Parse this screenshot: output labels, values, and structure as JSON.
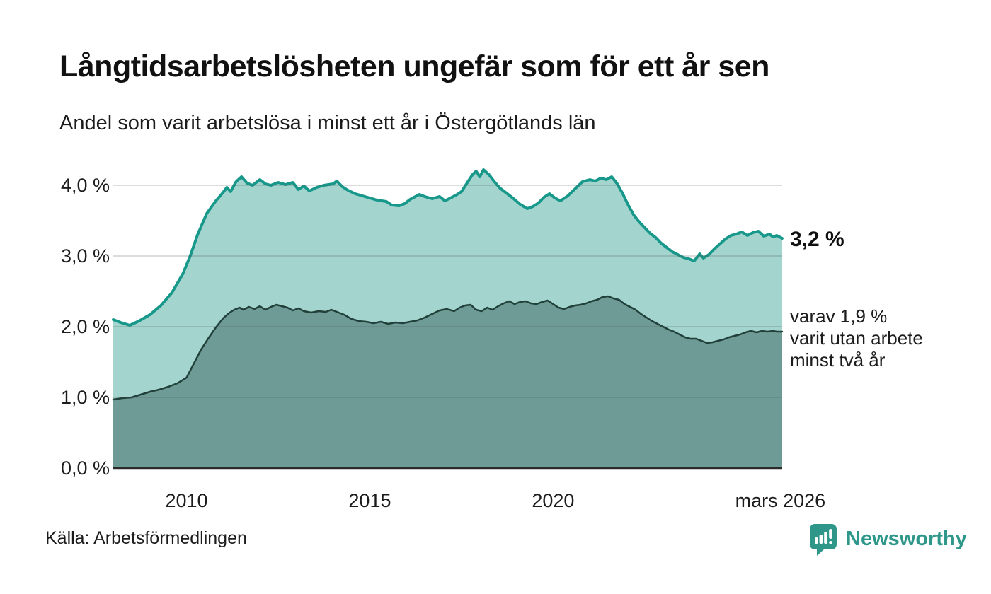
{
  "header": {
    "title": "Långtidsarbetslösheten ungefär som för ett år sen",
    "subtitle": "Andel som varit arbetslösa i minst ett år i Östergötlands län"
  },
  "annotations": {
    "latest_total": "3,2 %",
    "secondary": [
      "varav 1,9 %",
      "varit utan arbete",
      "minst två år"
    ]
  },
  "footer": {
    "source": "Källa: Arbetsförmedlingen",
    "brand": "Newsworthy"
  },
  "colors": {
    "accent_teal": "#17988a",
    "light_fill": "#a3d5ce",
    "dark_fill": "#6f9b96",
    "dark_line": "#21403a",
    "gridline": "rgba(80,80,80,0.20)",
    "axis_line": "#2b2b2b",
    "brand_teal": "#2e978a"
  },
  "chart_data": {
    "type": "area",
    "title": "Långtidsarbetslösheten ungefär som för ett år sen",
    "subtitle": "Andel som varit arbetslösa i minst ett år i Östergötlands län",
    "x_domain": [
      2008.0,
      2026.25
    ],
    "y_domain": [
      0,
      4.45
    ],
    "grid": true,
    "y_ticks": [
      {
        "value": 0.0,
        "label": "0,0 %"
      },
      {
        "value": 1.0,
        "label": "1,0 %"
      },
      {
        "value": 2.0,
        "label": "2,0 %"
      },
      {
        "value": 3.0,
        "label": "3,0 %"
      },
      {
        "value": 4.0,
        "label": "4,0 %"
      }
    ],
    "x_ticks": [
      {
        "value": 2010,
        "label": "2010"
      },
      {
        "value": 2015,
        "label": "2015"
      },
      {
        "value": 2020,
        "label": "2020"
      },
      {
        "value": 2026.2,
        "label": "mars 2026"
      }
    ],
    "series": [
      {
        "name": "Andel som varit arbetslösa i minst ett år",
        "latest_label": "3,2 %",
        "line_color": "#17988a",
        "fill_color": "#a3d5ce",
        "line_width": 4,
        "points": [
          [
            2008.0,
            2.1
          ],
          [
            2008.2,
            2.06
          ],
          [
            2008.45,
            2.02
          ],
          [
            2008.7,
            2.08
          ],
          [
            2009.0,
            2.17
          ],
          [
            2009.3,
            2.3
          ],
          [
            2009.6,
            2.48
          ],
          [
            2009.9,
            2.75
          ],
          [
            2010.1,
            3.0
          ],
          [
            2010.3,
            3.3
          ],
          [
            2010.55,
            3.6
          ],
          [
            2010.8,
            3.78
          ],
          [
            2011.0,
            3.9
          ],
          [
            2011.1,
            3.97
          ],
          [
            2011.2,
            3.91
          ],
          [
            2011.35,
            4.05
          ],
          [
            2011.5,
            4.12
          ],
          [
            2011.65,
            4.03
          ],
          [
            2011.8,
            4.0
          ],
          [
            2012.0,
            4.08
          ],
          [
            2012.15,
            4.02
          ],
          [
            2012.3,
            4.0
          ],
          [
            2012.5,
            4.04
          ],
          [
            2012.7,
            4.01
          ],
          [
            2012.9,
            4.04
          ],
          [
            2013.05,
            3.94
          ],
          [
            2013.2,
            3.99
          ],
          [
            2013.35,
            3.92
          ],
          [
            2013.55,
            3.97
          ],
          [
            2013.75,
            4.0
          ],
          [
            2014.0,
            4.02
          ],
          [
            2014.1,
            4.06
          ],
          [
            2014.25,
            3.98
          ],
          [
            2014.4,
            3.93
          ],
          [
            2014.6,
            3.88
          ],
          [
            2014.8,
            3.85
          ],
          [
            2015.0,
            3.82
          ],
          [
            2015.2,
            3.79
          ],
          [
            2015.45,
            3.77
          ],
          [
            2015.6,
            3.72
          ],
          [
            2015.8,
            3.71
          ],
          [
            2015.95,
            3.74
          ],
          [
            2016.1,
            3.8
          ],
          [
            2016.35,
            3.87
          ],
          [
            2016.5,
            3.84
          ],
          [
            2016.7,
            3.81
          ],
          [
            2016.9,
            3.84
          ],
          [
            2017.05,
            3.78
          ],
          [
            2017.2,
            3.82
          ],
          [
            2017.35,
            3.86
          ],
          [
            2017.5,
            3.91
          ],
          [
            2017.65,
            4.03
          ],
          [
            2017.8,
            4.15
          ],
          [
            2017.9,
            4.2
          ],
          [
            2018.0,
            4.12
          ],
          [
            2018.1,
            4.22
          ],
          [
            2018.25,
            4.15
          ],
          [
            2018.4,
            4.05
          ],
          [
            2018.55,
            3.96
          ],
          [
            2018.7,
            3.9
          ],
          [
            2018.9,
            3.82
          ],
          [
            2019.1,
            3.73
          ],
          [
            2019.3,
            3.67
          ],
          [
            2019.45,
            3.7
          ],
          [
            2019.6,
            3.75
          ],
          [
            2019.75,
            3.83
          ],
          [
            2019.9,
            3.88
          ],
          [
            2020.05,
            3.82
          ],
          [
            2020.2,
            3.78
          ],
          [
            2020.4,
            3.85
          ],
          [
            2020.6,
            3.95
          ],
          [
            2020.8,
            4.05
          ],
          [
            2021.0,
            4.08
          ],
          [
            2021.15,
            4.06
          ],
          [
            2021.3,
            4.1
          ],
          [
            2021.45,
            4.08
          ],
          [
            2021.6,
            4.12
          ],
          [
            2021.75,
            4.02
          ],
          [
            2021.9,
            3.88
          ],
          [
            2022.05,
            3.72
          ],
          [
            2022.2,
            3.58
          ],
          [
            2022.35,
            3.48
          ],
          [
            2022.5,
            3.4
          ],
          [
            2022.65,
            3.32
          ],
          [
            2022.8,
            3.26
          ],
          [
            2022.95,
            3.18
          ],
          [
            2023.1,
            3.12
          ],
          [
            2023.25,
            3.06
          ],
          [
            2023.4,
            3.02
          ],
          [
            2023.55,
            2.98
          ],
          [
            2023.7,
            2.96
          ],
          [
            2023.85,
            2.93
          ],
          [
            2024.0,
            3.03
          ],
          [
            2024.1,
            2.97
          ],
          [
            2024.25,
            3.02
          ],
          [
            2024.4,
            3.1
          ],
          [
            2024.55,
            3.17
          ],
          [
            2024.7,
            3.24
          ],
          [
            2024.85,
            3.29
          ],
          [
            2025.0,
            3.31
          ],
          [
            2025.15,
            3.34
          ],
          [
            2025.3,
            3.29
          ],
          [
            2025.45,
            3.33
          ],
          [
            2025.6,
            3.35
          ],
          [
            2025.75,
            3.28
          ],
          [
            2025.9,
            3.31
          ],
          [
            2026.0,
            3.27
          ],
          [
            2026.1,
            3.29
          ],
          [
            2026.25,
            3.25
          ]
        ]
      },
      {
        "name": "varav: utan arbete i minst två år",
        "latest_label": "1,9 %",
        "line_color": "#21403a",
        "fill_color": "#6f9b96",
        "line_width": 2.5,
        "points": [
          [
            2008.0,
            0.97
          ],
          [
            2008.25,
            0.99
          ],
          [
            2008.5,
            1.0
          ],
          [
            2008.75,
            1.04
          ],
          [
            2009.0,
            1.08
          ],
          [
            2009.25,
            1.11
          ],
          [
            2009.5,
            1.15
          ],
          [
            2009.75,
            1.2
          ],
          [
            2010.0,
            1.28
          ],
          [
            2010.2,
            1.48
          ],
          [
            2010.4,
            1.68
          ],
          [
            2010.6,
            1.84
          ],
          [
            2010.8,
            1.99
          ],
          [
            2011.0,
            2.12
          ],
          [
            2011.15,
            2.19
          ],
          [
            2011.3,
            2.24
          ],
          [
            2011.45,
            2.27
          ],
          [
            2011.55,
            2.24
          ],
          [
            2011.7,
            2.28
          ],
          [
            2011.85,
            2.25
          ],
          [
            2012.0,
            2.29
          ],
          [
            2012.15,
            2.24
          ],
          [
            2012.3,
            2.28
          ],
          [
            2012.45,
            2.31
          ],
          [
            2012.6,
            2.29
          ],
          [
            2012.75,
            2.27
          ],
          [
            2012.9,
            2.23
          ],
          [
            2013.05,
            2.26
          ],
          [
            2013.2,
            2.22
          ],
          [
            2013.4,
            2.2
          ],
          [
            2013.6,
            2.22
          ],
          [
            2013.8,
            2.21
          ],
          [
            2013.95,
            2.24
          ],
          [
            2014.1,
            2.21
          ],
          [
            2014.3,
            2.17
          ],
          [
            2014.5,
            2.11
          ],
          [
            2014.7,
            2.08
          ],
          [
            2014.9,
            2.07
          ],
          [
            2015.1,
            2.05
          ],
          [
            2015.3,
            2.07
          ],
          [
            2015.5,
            2.04
          ],
          [
            2015.7,
            2.06
          ],
          [
            2015.9,
            2.05
          ],
          [
            2016.1,
            2.07
          ],
          [
            2016.3,
            2.09
          ],
          [
            2016.5,
            2.13
          ],
          [
            2016.7,
            2.18
          ],
          [
            2016.9,
            2.23
          ],
          [
            2017.1,
            2.25
          ],
          [
            2017.3,
            2.22
          ],
          [
            2017.45,
            2.27
          ],
          [
            2017.6,
            2.3
          ],
          [
            2017.75,
            2.31
          ],
          [
            2017.9,
            2.24
          ],
          [
            2018.05,
            2.22
          ],
          [
            2018.2,
            2.27
          ],
          [
            2018.35,
            2.24
          ],
          [
            2018.5,
            2.29
          ],
          [
            2018.65,
            2.33
          ],
          [
            2018.8,
            2.36
          ],
          [
            2018.95,
            2.32
          ],
          [
            2019.1,
            2.35
          ],
          [
            2019.25,
            2.36
          ],
          [
            2019.4,
            2.33
          ],
          [
            2019.55,
            2.32
          ],
          [
            2019.7,
            2.35
          ],
          [
            2019.85,
            2.37
          ],
          [
            2020.0,
            2.32
          ],
          [
            2020.15,
            2.27
          ],
          [
            2020.3,
            2.25
          ],
          [
            2020.45,
            2.28
          ],
          [
            2020.6,
            2.3
          ],
          [
            2020.75,
            2.31
          ],
          [
            2020.9,
            2.33
          ],
          [
            2021.05,
            2.36
          ],
          [
            2021.2,
            2.38
          ],
          [
            2021.35,
            2.42
          ],
          [
            2021.5,
            2.43
          ],
          [
            2021.65,
            2.4
          ],
          [
            2021.8,
            2.38
          ],
          [
            2021.95,
            2.32
          ],
          [
            2022.1,
            2.28
          ],
          [
            2022.25,
            2.24
          ],
          [
            2022.4,
            2.18
          ],
          [
            2022.55,
            2.13
          ],
          [
            2022.7,
            2.08
          ],
          [
            2022.85,
            2.04
          ],
          [
            2023.0,
            2.0
          ],
          [
            2023.15,
            1.96
          ],
          [
            2023.3,
            1.93
          ],
          [
            2023.45,
            1.89
          ],
          [
            2023.6,
            1.85
          ],
          [
            2023.75,
            1.83
          ],
          [
            2023.9,
            1.83
          ],
          [
            2024.05,
            1.8
          ],
          [
            2024.2,
            1.77
          ],
          [
            2024.35,
            1.78
          ],
          [
            2024.5,
            1.8
          ],
          [
            2024.65,
            1.82
          ],
          [
            2024.8,
            1.85
          ],
          [
            2024.95,
            1.87
          ],
          [
            2025.1,
            1.89
          ],
          [
            2025.25,
            1.92
          ],
          [
            2025.4,
            1.94
          ],
          [
            2025.55,
            1.92
          ],
          [
            2025.7,
            1.94
          ],
          [
            2025.85,
            1.93
          ],
          [
            2026.0,
            1.94
          ],
          [
            2026.1,
            1.93
          ],
          [
            2026.25,
            1.93
          ]
        ]
      }
    ]
  }
}
